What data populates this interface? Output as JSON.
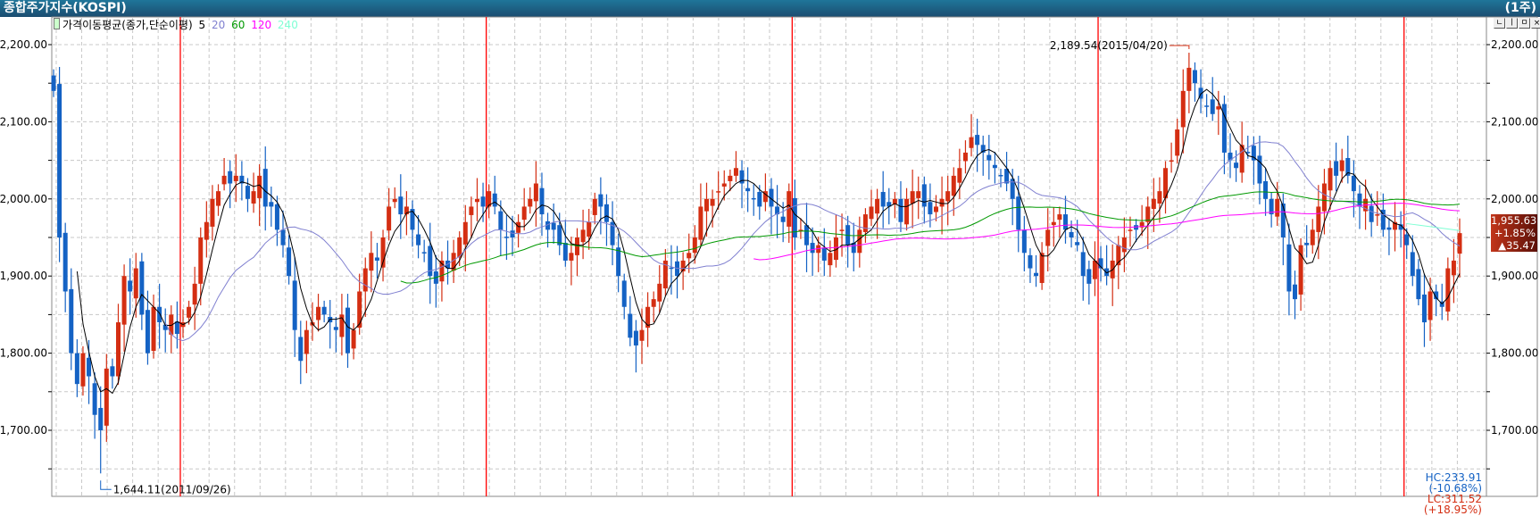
{
  "window": {
    "title": "종합주가지수(KOSPI)",
    "period": "(1주)",
    "buttons": [
      "ㄴ",
      "ㅣ",
      "ㅁ",
      "×"
    ]
  },
  "legend": {
    "label": "가격이동평균(종가,단순이평)",
    "periods": [
      {
        "label": "5",
        "color": "#000000"
      },
      {
        "label": "20",
        "color": "#8080d0"
      },
      {
        "label": "60",
        "color": "#009900"
      },
      {
        "label": "120",
        "color": "#ff00ff"
      },
      {
        "label": "240",
        "color": "#7fffd4"
      }
    ]
  },
  "colors": {
    "up": "#d42e12",
    "down": "#1462c4",
    "yearline": "#ff0000",
    "grid": "#c8c8c8"
  },
  "price_tag": {
    "price": "1,955.63",
    "change_pct": "+1.85%",
    "change": "▲35.47"
  },
  "stats": {
    "hc": "HC:233.91 (-10.68%)",
    "lc": "LC:311.52 (+18.95%)"
  },
  "chart_data": {
    "type": "candlestick",
    "title": "종합주가지수(KOSPI)",
    "interval": "weekly",
    "ylim": [
      1590,
      2260
    ],
    "yticks": [
      "2,200.00",
      "2,100.00",
      "2,000.00",
      "1,900.00",
      "1,800.00",
      "1,700.00"
    ],
    "ytick_values": [
      2200,
      2100,
      2000,
      1900,
      1800,
      1700
    ],
    "year_boundaries_index": [
      22,
      74,
      126,
      178,
      230
    ],
    "closes": [
      2140,
      1950,
      1880,
      1800,
      1760,
      1800,
      1770,
      1720,
      1700,
      1780,
      1770,
      1840,
      1900,
      1880,
      1910,
      1850,
      1800,
      1860,
      1840,
      1830,
      1850,
      1825,
      1840,
      1860,
      1890,
      1950,
      1970,
      2000,
      2010,
      2030,
      2020,
      2030,
      2020,
      2000,
      2010,
      2030,
      1990,
      1990,
      1960,
      1940,
      1900,
      1830,
      1790,
      1830,
      1840,
      1860,
      1850,
      1840,
      1830,
      1850,
      1800,
      1830,
      1880,
      1910,
      1930,
      1920,
      1950,
      1990,
      2000,
      1980,
      1990,
      1960,
      1940,
      1930,
      1900,
      1890,
      1920,
      1910,
      1930,
      1950,
      1970,
      1990,
      2000,
      1990,
      2010,
      1990,
      1960,
      1950,
      1950,
      1970,
      1990,
      2000,
      2020,
      1980,
      1960,
      1960,
      1940,
      1920,
      1930,
      1950,
      1960,
      1970,
      2000,
      1990,
      1970,
      1940,
      1900,
      1860,
      1820,
      1810,
      1830,
      1860,
      1870,
      1890,
      1920,
      1910,
      1900,
      1920,
      1930,
      1950,
      1990,
      2000,
      2000,
      2010,
      2020,
      2030,
      2040,
      2020,
      2010,
      2000,
      1990,
      2010,
      1990,
      1980,
      1970,
      2010,
      1950,
      1960,
      1940,
      1930,
      1940,
      1920,
      1930,
      1950,
      1960,
      1940,
      1930,
      1960,
      1980,
      1990,
      2000,
      1990,
      1990,
      2000,
      1970,
      2000,
      2010,
      2010,
      1990,
      1980,
      1990,
      2000,
      2010,
      2030,
      2040,
      2060,
      2080,
      2070,
      2060,
      2050,
      2040,
      2030,
      2020,
      2000,
      1960,
      1930,
      1910,
      1900,
      1930,
      1960,
      1970,
      1980,
      1960,
      1950,
      1940,
      1900,
      1890,
      1920,
      1910,
      1900,
      1920,
      1940,
      1950,
      1960,
      1960,
      1970,
      1990,
      2000,
      2010,
      2040,
      2050,
      2090,
      2140,
      2170,
      2150,
      2130,
      2120,
      2110,
      2120,
      2060,
      2050,
      2040,
      2070,
      2060,
      2050,
      2020,
      2000,
      1980,
      2000,
      1950,
      1880,
      1870,
      1940,
      1940,
      1960,
      1990,
      2020,
      2040,
      2030,
      2050,
      2030,
      2010,
      1990,
      2000,
      1970,
      1980,
      1960,
      1960,
      1970,
      1960,
      1940,
      1900,
      1870,
      1840,
      1880,
      1870,
      1860,
      1910,
      1920,
      1955.63
    ],
    "ma_periods": [
      5,
      20,
      60,
      120
    ],
    "ma240_tail": [
      1968,
      1967,
      1966,
      1965,
      1964,
      1963,
      1962,
      1961,
      1960,
      1959
    ],
    "annotations": [
      {
        "index": 8,
        "type": "low",
        "value": 1644.11,
        "text": "1,644.11(2011/09/26)"
      },
      {
        "index": 193,
        "type": "high",
        "value": 2189.54,
        "text": "2,189.54(2015/04/20)"
      }
    ]
  }
}
